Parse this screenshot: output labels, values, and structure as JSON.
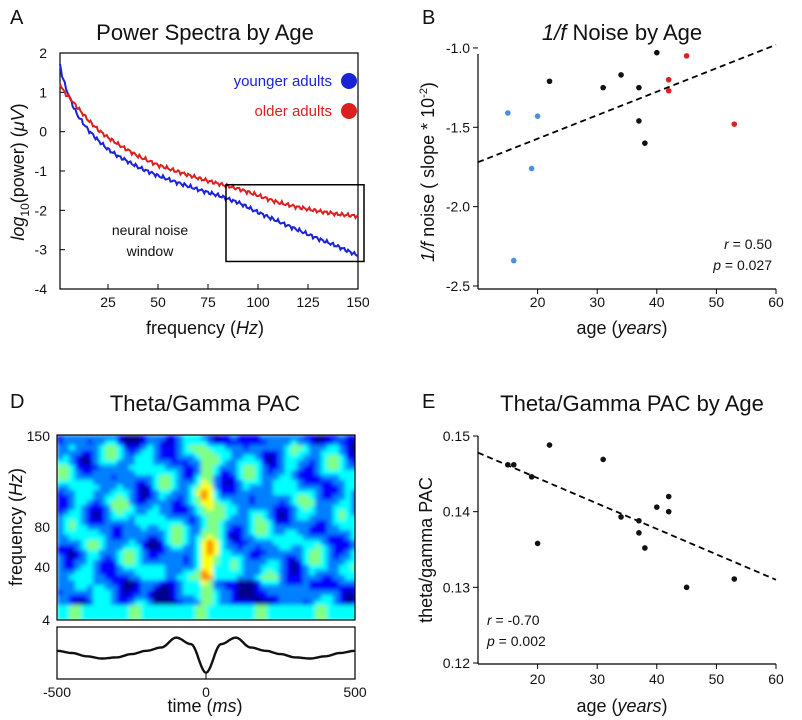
{
  "chart_data": [
    {
      "panel": "A",
      "type": "line",
      "title": "Power Spectra by Age",
      "xlabel_text": "frequency (",
      "xlabel_unit": "Hz",
      "xlabel_close": ")",
      "ylabel_prefix": "log",
      "ylabel_sub": "10",
      "ylabel_mid": "(power) (",
      "ylabel_unit": "μV",
      "ylabel_close": ")",
      "xlim": [
        1,
        150
      ],
      "ylim": [
        -4,
        2
      ],
      "xticks": [
        25,
        50,
        75,
        100,
        125,
        150
      ],
      "yticks": [
        2,
        1,
        0,
        -1,
        -2,
        -3,
        -4
      ],
      "legend_position": "top-right",
      "series": [
        {
          "name": "younger adults",
          "color": "#1a23d6",
          "x": [
            1,
            2,
            4,
            6,
            8,
            10,
            15,
            20,
            25,
            30,
            40,
            50,
            60,
            70,
            80,
            90,
            100,
            110,
            120,
            130,
            140,
            150
          ],
          "y": [
            1.7,
            1.45,
            1.1,
            0.85,
            0.6,
            0.4,
            0.05,
            -0.22,
            -0.45,
            -0.62,
            -0.9,
            -1.12,
            -1.3,
            -1.47,
            -1.62,
            -1.8,
            -2.05,
            -2.28,
            -2.5,
            -2.72,
            -2.92,
            -3.15
          ]
        },
        {
          "name": "older adults",
          "color": "#dc1f1f",
          "x": [
            1,
            2,
            4,
            6,
            8,
            10,
            15,
            20,
            25,
            30,
            40,
            50,
            60,
            70,
            80,
            90,
            100,
            110,
            120,
            130,
            140,
            150
          ],
          "y": [
            1.25,
            1.1,
            0.95,
            0.85,
            0.72,
            0.6,
            0.3,
            0.05,
            -0.15,
            -0.32,
            -0.62,
            -0.85,
            -1.02,
            -1.18,
            -1.32,
            -1.45,
            -1.62,
            -1.8,
            -1.92,
            -2.02,
            -2.1,
            -2.15
          ]
        }
      ],
      "annotation_lines": [
        "neural noise",
        "window"
      ],
      "annotation_range": {
        "x": [
          84,
          153
        ],
        "y": [
          -3.3,
          -1.35
        ]
      }
    },
    {
      "panel": "B",
      "type": "scatter",
      "title_italic": "1/f",
      "title_rest": " Noise by Age",
      "title": "1/f Noise by Age",
      "xlabel_text": "age (",
      "xlabel_unit": "years",
      "xlabel_close": ")",
      "ylabel_italic": "1/f",
      "ylabel_rest": " noise ( slope * 10",
      "ylabel_sup": "-2",
      "ylabel_close": ")",
      "xlim": [
        10,
        60
      ],
      "ylim": [
        -2.5,
        -0.95
      ],
      "xticks": [
        20,
        30,
        40,
        50,
        60
      ],
      "yticks": [
        -1.0,
        -1.5,
        -2.0,
        -2.5
      ],
      "ytick_labels": [
        "-1.0",
        "-1.5",
        "-2.0",
        "-2.5"
      ],
      "points": [
        {
          "x": 15,
          "y": -1.41,
          "color": "#4a8fe0"
        },
        {
          "x": 16,
          "y": -2.34,
          "color": "#4a8fe0"
        },
        {
          "x": 19,
          "y": -1.76,
          "color": "#4a8fe0"
        },
        {
          "x": 20,
          "y": -1.43,
          "color": "#4a8fe0"
        },
        {
          "x": 22,
          "y": -1.21,
          "color": "#111111"
        },
        {
          "x": 31,
          "y": -1.25,
          "color": "#111111"
        },
        {
          "x": 34,
          "y": -1.17,
          "color": "#111111"
        },
        {
          "x": 37,
          "y": -1.25,
          "color": "#111111"
        },
        {
          "x": 37,
          "y": -1.46,
          "color": "#111111"
        },
        {
          "x": 38,
          "y": -1.6,
          "color": "#111111"
        },
        {
          "x": 40,
          "y": -1.03,
          "color": "#111111"
        },
        {
          "x": 42,
          "y": -1.2,
          "color": "#dc1f1f"
        },
        {
          "x": 42,
          "y": -1.27,
          "color": "#dc1f1f"
        },
        {
          "x": 45,
          "y": -1.05,
          "color": "#dc1f1f"
        },
        {
          "x": 53,
          "y": -1.48,
          "color": "#dc1f1f"
        }
      ],
      "fit_line": {
        "x": [
          10,
          60
        ],
        "y": [
          -1.72,
          -0.98
        ]
      },
      "stat_r_label": "r",
      "stat_r_value": " = 0.50",
      "stat_p_label": "p",
      "stat_p_value": " = 0.027"
    },
    {
      "panel": "D",
      "type": "heatmap",
      "title": "Theta/Gamma PAC",
      "xlabel_text": "time (",
      "xlabel_unit": "ms",
      "xlabel_close": ")",
      "ylabel_text": "frequency (",
      "ylabel_unit": "Hz",
      "ylabel_close": ")",
      "xlim": [
        -500,
        500
      ],
      "xticks": [
        -500,
        0,
        500
      ],
      "xtick_labels": [
        "-500",
        "0",
        "500"
      ],
      "yticks": [
        150,
        80,
        40,
        4
      ],
      "ytick_labels": [
        "150",
        "80",
        "40",
        "4"
      ],
      "colormap": [
        "#00008f",
        "#0000ff",
        "#0080ff",
        "#00ffff",
        "#80ff80",
        "#ffff00",
        "#ff8000",
        "#ff0000"
      ],
      "trace": {
        "x": [
          -500,
          -450,
          -400,
          -350,
          -300,
          -250,
          -200,
          -150,
          -100,
          -50,
          0,
          50,
          100,
          150,
          200,
          250,
          300,
          350,
          400,
          450,
          500
        ],
        "y": [
          0.1,
          0.0,
          -0.15,
          -0.25,
          -0.2,
          -0.05,
          0.1,
          0.25,
          0.7,
          0.4,
          -0.9,
          0.4,
          0.7,
          0.25,
          0.1,
          -0.05,
          -0.2,
          -0.25,
          -0.15,
          0.0,
          0.1
        ]
      }
    },
    {
      "panel": "E",
      "type": "scatter",
      "title": "Theta/Gamma PAC by Age",
      "xlabel_text": "age (",
      "xlabel_unit": "years",
      "xlabel_close": ")",
      "ylabel": "theta/gamma PAC",
      "xlim": [
        10,
        60
      ],
      "ylim": [
        0.12,
        0.15
      ],
      "xticks": [
        20,
        30,
        40,
        50,
        60
      ],
      "yticks": [
        0.15,
        0.14,
        0.13,
        0.12
      ],
      "ytick_labels": [
        "0.15",
        "0.14",
        "0.13",
        "0.12"
      ],
      "points": [
        {
          "x": 15,
          "y": 0.1462
        },
        {
          "x": 16,
          "y": 0.1462
        },
        {
          "x": 19,
          "y": 0.1446
        },
        {
          "x": 20,
          "y": 0.1358
        },
        {
          "x": 22,
          "y": 0.1488
        },
        {
          "x": 31,
          "y": 0.1469
        },
        {
          "x": 34,
          "y": 0.1393
        },
        {
          "x": 37,
          "y": 0.1388
        },
        {
          "x": 37,
          "y": 0.1372
        },
        {
          "x": 38,
          "y": 0.1352
        },
        {
          "x": 40,
          "y": 0.1406
        },
        {
          "x": 42,
          "y": 0.142
        },
        {
          "x": 42,
          "y": 0.14
        },
        {
          "x": 45,
          "y": 0.13
        },
        {
          "x": 53,
          "y": 0.1311
        }
      ],
      "fit_line": {
        "x": [
          10,
          60
        ],
        "y": [
          0.1478,
          0.131
        ]
      },
      "stat_r_label": "r",
      "stat_r_value": " = -0.70",
      "stat_p_label": "p",
      "stat_p_value": " = 0.002"
    }
  ],
  "panel_letters": {
    "a": "A",
    "b": "B",
    "d": "D",
    "e": "E"
  }
}
